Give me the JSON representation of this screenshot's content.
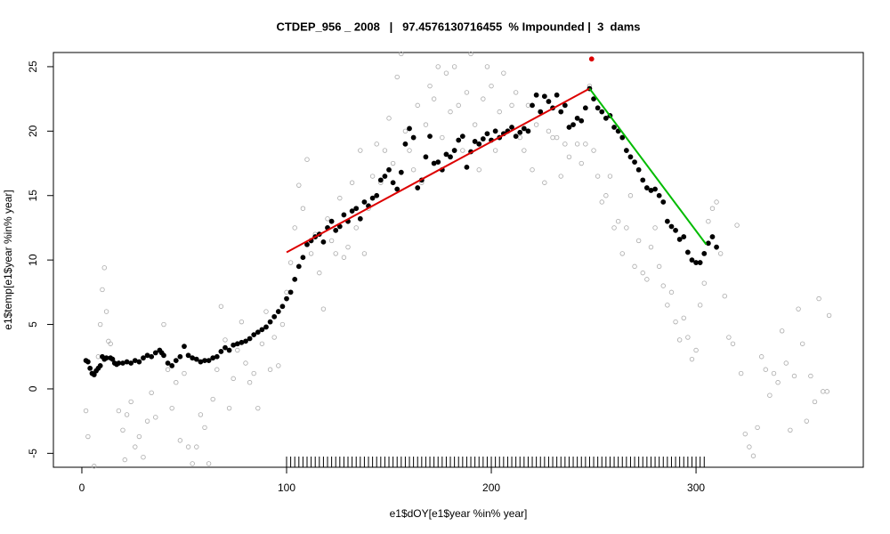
{
  "chart_data": {
    "type": "scatter",
    "title": "CTDEP_956 _ 2008   |   97.4576130716455  % Impounded |  3  dams",
    "x_label": "e1$dOY[e1$year %in% year]",
    "y_label": "e1$temp[e1$year %in% year]",
    "xlim": [
      -13.9,
      381.7
    ],
    "ylim": [
      -6.08,
      26.1
    ],
    "xticks": [
      0,
      100,
      200,
      300
    ],
    "yticks": [
      -5,
      0,
      5,
      10,
      15,
      20,
      25
    ],
    "series": [
      {
        "marker": "open-circle",
        "color": "#aaaaaa",
        "x": [
          2,
          3,
          6,
          8,
          9,
          10,
          11,
          12,
          13,
          14,
          16,
          18,
          20,
          21,
          22,
          24,
          26,
          28,
          30,
          32,
          34,
          36,
          38,
          40,
          42,
          44,
          46,
          48,
          50,
          52,
          54,
          56,
          58,
          60,
          62,
          64,
          66,
          68,
          70,
          72,
          74,
          76,
          78,
          80,
          82,
          84,
          86,
          88,
          90,
          92,
          94,
          96,
          98,
          100,
          102,
          104,
          106,
          108,
          110,
          112,
          114,
          116,
          118,
          120,
          122,
          124,
          126,
          128,
          130,
          132,
          134,
          136,
          138,
          140,
          142,
          144,
          146,
          148,
          150,
          152,
          154,
          156,
          158,
          160,
          162,
          164,
          166,
          168,
          170,
          172,
          174,
          176,
          178,
          180,
          182,
          184,
          186,
          188,
          190,
          192,
          194,
          196,
          198,
          200,
          202,
          204,
          206,
          208,
          210,
          212,
          214,
          216,
          218,
          220,
          222,
          224,
          226,
          228,
          230,
          232,
          234,
          236,
          238,
          240,
          242,
          244,
          246,
          248,
          250,
          252,
          254,
          256,
          258,
          260,
          262,
          264,
          266,
          268,
          270,
          272,
          274,
          276,
          278,
          280,
          282,
          284,
          286,
          288,
          290,
          292,
          294,
          296,
          298,
          300,
          302,
          304,
          306,
          308,
          310,
          312,
          314,
          316,
          318,
          320,
          322,
          324,
          326,
          328,
          330,
          332,
          334,
          336,
          338,
          340,
          342,
          344,
          346,
          348,
          350,
          352,
          354,
          356,
          358,
          360,
          362,
          364,
          365
        ],
        "values": [
          -1.7,
          -3.7,
          -6.0,
          2.5,
          5.0,
          7.7,
          9.4,
          6.0,
          3.7,
          3.5,
          2.0,
          -1.7,
          -3.2,
          -5.5,
          -2.0,
          -1.0,
          -4.5,
          -3.7,
          -5.3,
          -2.5,
          -0.3,
          -2.2,
          3.0,
          5.0,
          1.5,
          -1.5,
          0.5,
          -4.0,
          1.2,
          -4.5,
          -5.8,
          -4.5,
          -2.0,
          -3.0,
          -5.8,
          -0.8,
          1.5,
          6.4,
          3.8,
          -1.5,
          0.8,
          3.0,
          5.2,
          2.0,
          0.5,
          1.2,
          -1.5,
          3.5,
          6.0,
          1.5,
          4.0,
          1.8,
          5.0,
          7.5,
          9.8,
          12.5,
          15.8,
          14.0,
          17.8,
          10.5,
          12.0,
          9.0,
          6.2,
          13.2,
          11.5,
          10.5,
          14.8,
          10.2,
          11.0,
          16.0,
          12.5,
          18.5,
          10.5,
          14.0,
          16.5,
          19.0,
          16.0,
          18.5,
          21.0,
          17.5,
          24.2,
          26.0,
          20.0,
          18.5,
          17.0,
          22.0,
          16.0,
          20.5,
          23.5,
          22.5,
          25.0,
          19.5,
          24.5,
          21.5,
          25.0,
          22.0,
          18.5,
          23.0,
          26.0,
          20.5,
          17.0,
          22.5,
          25.0,
          23.5,
          18.5,
          21.5,
          24.5,
          20.0,
          22.0,
          23.0,
          19.5,
          18.5,
          22.0,
          17.0,
          20.5,
          21.5,
          16.0,
          20.0,
          19.5,
          19.5,
          16.5,
          19.0,
          18.0,
          20.5,
          19.0,
          17.5,
          19.0,
          23.5,
          18.5,
          16.5,
          14.5,
          15.0,
          16.5,
          12.5,
          13.0,
          10.5,
          12.5,
          15.0,
          9.5,
          11.5,
          9.0,
          8.5,
          11.0,
          12.5,
          9.5,
          8.0,
          6.5,
          7.5,
          5.2,
          3.8,
          5.5,
          4.0,
          2.3,
          3.0,
          6.5,
          8.2,
          13.0,
          14.0,
          14.5,
          10.5,
          7.2,
          4.0,
          3.5,
          12.7,
          1.2,
          -3.5,
          -4.5,
          -5.2,
          -3.0,
          2.5,
          1.5,
          -0.5,
          1.2,
          0.5,
          4.5,
          2.0,
          -3.2,
          1.0,
          6.2,
          3.5,
          -2.5,
          1.0,
          -1.0,
          7.0,
          -0.2,
          -0.2,
          5.7
        ]
      },
      {
        "marker": "filled-circle",
        "color": "#000000",
        "x": [
          2,
          3,
          4,
          5,
          6,
          7,
          8,
          9,
          10,
          11,
          12,
          14,
          15,
          16,
          17,
          18,
          20,
          22,
          24,
          26,
          28,
          30,
          32,
          34,
          36,
          38,
          39,
          40,
          42,
          44,
          46,
          48,
          50,
          52,
          54,
          56,
          58,
          60,
          62,
          64,
          66,
          68,
          70,
          72,
          74,
          76,
          78,
          80,
          82,
          84,
          86,
          88,
          90,
          92,
          94,
          96,
          98,
          100,
          102,
          104,
          106,
          108,
          110,
          112,
          114,
          116,
          118,
          120,
          122,
          124,
          126,
          128,
          130,
          132,
          134,
          136,
          138,
          140,
          142,
          144,
          146,
          148,
          150,
          152,
          154,
          156,
          158,
          160,
          162,
          164,
          166,
          168,
          170,
          172,
          174,
          176,
          178,
          180,
          182,
          184,
          186,
          188,
          190,
          192,
          194,
          196,
          198,
          200,
          202,
          204,
          206,
          208,
          210,
          212,
          214,
          216,
          218,
          220,
          222,
          224,
          226,
          228,
          230,
          232,
          234,
          236,
          238,
          240,
          242,
          244,
          246,
          248,
          250,
          252,
          254,
          256,
          258,
          260,
          262,
          264,
          266,
          268,
          270,
          272,
          274,
          276,
          278,
          280,
          282,
          284,
          286,
          288,
          290,
          292,
          294,
          296,
          298,
          300,
          302,
          304,
          306,
          308,
          310
        ],
        "values": [
          2.2,
          2.1,
          1.6,
          1.2,
          1.1,
          1.4,
          1.6,
          1.8,
          2.5,
          2.3,
          2.4,
          2.4,
          2.3,
          2.0,
          1.9,
          2.0,
          2.0,
          2.1,
          2.0,
          2.2,
          2.1,
          2.4,
          2.6,
          2.5,
          2.8,
          3.0,
          2.8,
          2.6,
          2.0,
          1.8,
          2.2,
          2.5,
          3.3,
          2.6,
          2.4,
          2.3,
          2.1,
          2.2,
          2.2,
          2.4,
          2.5,
          2.9,
          3.2,
          3.0,
          3.4,
          3.5,
          3.6,
          3.7,
          3.9,
          4.2,
          4.4,
          4.6,
          4.8,
          5.2,
          5.6,
          6.0,
          6.4,
          7.0,
          7.5,
          8.5,
          9.5,
          10.2,
          11.2,
          11.5,
          11.8,
          12.0,
          11.4,
          12.5,
          13.0,
          12.3,
          12.6,
          13.5,
          13.0,
          13.8,
          14.0,
          13.2,
          14.5,
          14.2,
          14.8,
          15.0,
          16.2,
          16.5,
          17.0,
          16.0,
          15.5,
          16.8,
          19.0,
          20.2,
          19.5,
          15.6,
          16.2,
          18.0,
          19.6,
          17.5,
          17.6,
          17.0,
          18.2,
          18.0,
          18.5,
          19.3,
          19.6,
          17.2,
          18.4,
          19.2,
          19.0,
          19.4,
          19.8,
          19.3,
          20.0,
          19.5,
          19.8,
          20.0,
          20.3,
          19.6,
          19.9,
          20.2,
          20.0,
          22.0,
          22.8,
          21.5,
          22.7,
          22.3,
          21.8,
          22.8,
          21.5,
          22.0,
          20.3,
          20.5,
          21.0,
          20.8,
          21.8,
          23.3,
          22.5,
          21.8,
          21.5,
          21.0,
          21.2,
          20.3,
          20.0,
          19.5,
          18.5,
          18.0,
          17.6,
          17.0,
          16.2,
          15.6,
          15.4,
          15.5,
          15.0,
          14.5,
          13.0,
          12.6,
          12.3,
          11.6,
          11.8,
          10.6,
          10.0,
          9.8,
          9.8,
          10.5,
          11.3,
          11.8,
          11.0
        ]
      },
      {
        "marker": "line",
        "color": "#dd0000",
        "x": [
          100,
          248
        ],
        "values": [
          10.6,
          23.3
        ]
      },
      {
        "marker": "line",
        "color": "#00bb00",
        "x": [
          248,
          305
        ],
        "values": [
          23.3,
          11.2
        ]
      },
      {
        "marker": "filled-circle",
        "color": "#dd0000",
        "x": [
          249
        ],
        "values": [
          25.6
        ]
      }
    ],
    "rug": [
      100,
      102,
      104,
      106,
      108,
      110,
      112,
      114,
      116,
      118,
      120,
      122,
      124,
      126,
      128,
      130,
      132,
      134,
      136,
      138,
      140,
      142,
      144,
      146,
      148,
      150,
      152,
      154,
      156,
      158,
      160,
      162,
      164,
      166,
      168,
      170,
      172,
      174,
      176,
      178,
      180,
      182,
      184,
      186,
      188,
      190,
      192,
      194,
      196,
      198,
      200,
      202,
      204,
      206,
      208,
      210,
      212,
      214,
      216,
      218,
      220,
      222,
      224,
      226,
      228,
      230,
      232,
      234,
      236,
      238,
      240,
      242,
      244,
      246,
      248,
      250,
      252,
      254,
      256,
      258,
      260,
      262,
      264,
      266,
      268,
      270,
      272,
      274,
      276,
      278,
      280,
      282,
      284,
      286,
      288,
      290,
      292,
      294,
      296,
      298,
      300,
      302,
      304
    ]
  }
}
